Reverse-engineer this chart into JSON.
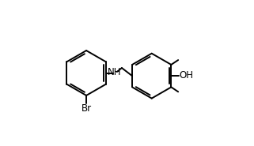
{
  "bg_color": "#ffffff",
  "bond_color": "#000000",
  "text_color": "#000000",
  "lw": 1.4,
  "fs": 8.5,
  "br_label": "Br",
  "oh_label": "OH",
  "nh_label": "NH",
  "lcx": 0.22,
  "lcy": 0.5,
  "lr": 0.155,
  "rcx": 0.67,
  "rcy": 0.48,
  "rr": 0.155
}
